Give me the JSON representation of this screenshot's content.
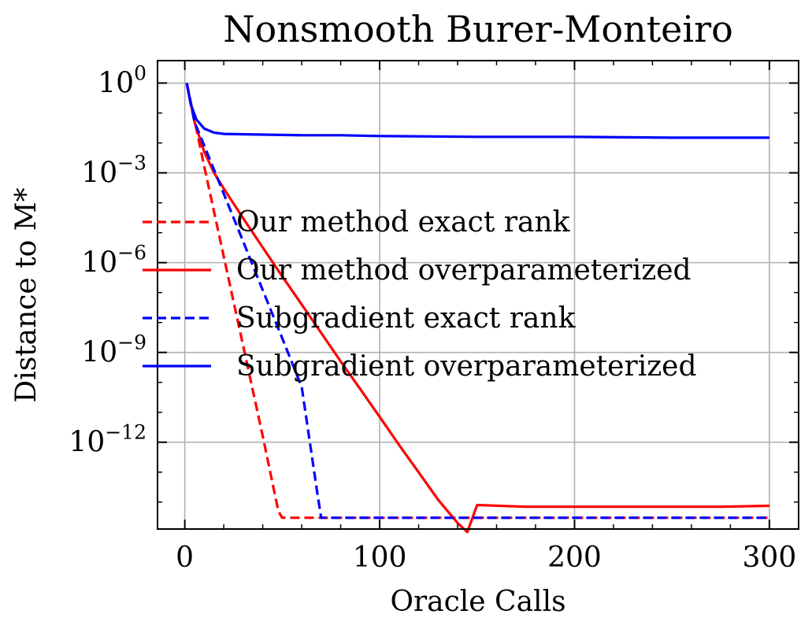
{
  "chart_data": {
    "type": "line",
    "title": "Nonsmooth Burer-Monteiro",
    "xlabel": "Oracle Calls",
    "ylabel": "Distance to M*",
    "xlim": [
      -14,
      315
    ],
    "ylim_log10": [
      -14.9,
      0.75
    ],
    "yscale": "log",
    "x_ticks": [
      0,
      100,
      200,
      300
    ],
    "x_tick_labels": [
      "0",
      "100",
      "200",
      "300"
    ],
    "y_ticks_log10": [
      0,
      -3,
      -6,
      -9,
      -12
    ],
    "y_tick_base": "10",
    "y_tick_exponents": [
      "0",
      "−3",
      "−6",
      "−9",
      "−12"
    ],
    "grid": true,
    "legend_position": "center-right",
    "series": [
      {
        "name": "Our method exact rank",
        "color": "#ff0000",
        "dash": "dashed",
        "x": [
          1,
          10,
          20,
          30,
          40,
          48,
          50,
          100,
          150,
          200,
          250,
          300
        ],
        "y": [
          1,
          0.0016,
          1.6e-06,
          1.6e-09,
          1.6e-12,
          5e-15,
          3e-15,
          3e-15,
          3e-15,
          3e-15,
          3e-15,
          3e-15
        ]
      },
      {
        "name": "Our method overparameterized",
        "color": "#ff0000",
        "dash": "solid",
        "x": [
          1,
          5,
          10,
          15,
          20,
          30,
          40,
          50,
          60,
          70,
          80,
          90,
          100,
          110,
          120,
          130,
          140,
          145,
          150,
          175,
          200,
          225,
          250,
          275,
          300
        ],
        "y": [
          1,
          0.05,
          0.005,
          0.001,
          0.0003,
          3e-05,
          3.2e-06,
          3.5e-07,
          4e-08,
          4.5e-09,
          5e-10,
          6e-11,
          7e-12,
          8e-13,
          1e-13,
          1.2e-14,
          2e-15,
          1e-15,
          8e-15,
          7e-15,
          7e-15,
          7e-15,
          7e-15,
          7e-15,
          7.5e-15
        ]
      },
      {
        "name": "Subgradient exact rank",
        "color": "#0000ff",
        "dash": "dashed",
        "x": [
          1,
          5,
          10,
          20,
          30,
          40,
          50,
          60,
          68,
          70,
          100,
          150,
          200,
          250,
          300
        ],
        "y": [
          1,
          0.05,
          0.008,
          0.0002,
          5e-06,
          1.2e-07,
          3e-09,
          7e-11,
          2e-14,
          3e-15,
          3e-15,
          3e-15,
          3e-15,
          3e-15,
          3e-15
        ]
      },
      {
        "name": "Subgradient overparameterized",
        "color": "#0000ff",
        "dash": "solid",
        "x": [
          1,
          3,
          6,
          10,
          15,
          20,
          40,
          60,
          80,
          100,
          150,
          200,
          250,
          300
        ],
        "y": [
          1,
          0.2,
          0.06,
          0.03,
          0.022,
          0.02,
          0.019,
          0.018,
          0.018,
          0.017,
          0.016,
          0.016,
          0.015,
          0.015
        ]
      }
    ]
  }
}
